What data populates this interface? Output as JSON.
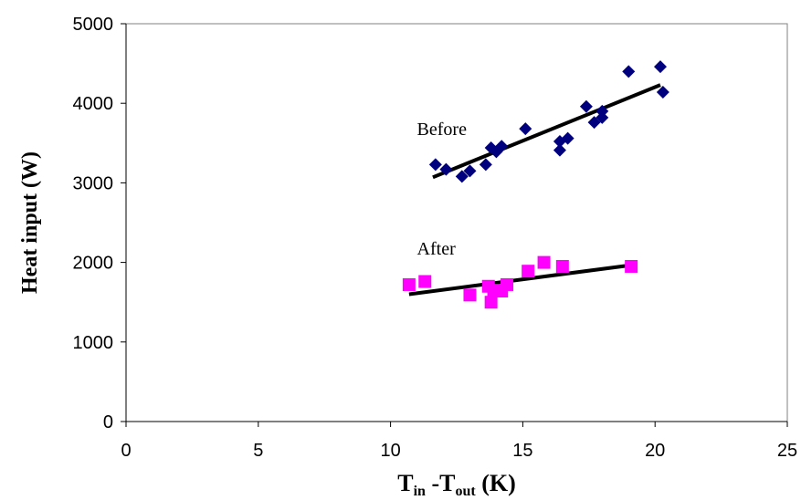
{
  "chart_data": {
    "type": "scatter",
    "title": "",
    "xlabel": {
      "main": "T",
      "sub1": "in",
      "mid": " -T",
      "sub2": "out",
      "tail": " (K)"
    },
    "ylabel": "Heat input (W)",
    "xlim": [
      0,
      25
    ],
    "ylim": [
      0,
      5000
    ],
    "xticks": [
      "0",
      "5",
      "10",
      "15",
      "20",
      "25"
    ],
    "yticks": [
      "0",
      "1000",
      "2000",
      "3000",
      "4000",
      "5000"
    ],
    "grid": false,
    "series": [
      {
        "name": "Before",
        "marker": "diamond",
        "color": "#00007f",
        "x": [
          11.7,
          12.1,
          12.7,
          13.0,
          13.6,
          13.8,
          14.0,
          14.2,
          15.1,
          16.4,
          16.4,
          16.7,
          17.4,
          17.7,
          18.0,
          18.0,
          19.0,
          20.2,
          20.3
        ],
        "y": [
          3230,
          3170,
          3080,
          3150,
          3230,
          3440,
          3390,
          3460,
          3680,
          3410,
          3520,
          3560,
          3960,
          3760,
          3900,
          3820,
          4400,
          4460,
          4140
        ]
      },
      {
        "name": "After",
        "marker": "square",
        "color": "#ff00ff",
        "x": [
          10.7,
          11.3,
          13.0,
          13.7,
          13.8,
          13.9,
          14.2,
          14.4,
          15.2,
          15.8,
          16.5,
          19.1
        ],
        "y": [
          1720,
          1760,
          1590,
          1700,
          1500,
          1650,
          1640,
          1720,
          1890,
          2000,
          1950,
          1950
        ]
      }
    ],
    "trendlines": [
      {
        "series": "Before",
        "x": [
          11.6,
          20.2
        ],
        "y": [
          3070,
          4230
        ]
      },
      {
        "series": "After",
        "x": [
          10.7,
          19.2
        ],
        "y": [
          1600,
          1970
        ]
      }
    ],
    "annotations": [
      {
        "text": "Before",
        "x": 11.0,
        "y": 3600
      },
      {
        "text": "After",
        "x": 11.0,
        "y": 2100
      }
    ]
  }
}
